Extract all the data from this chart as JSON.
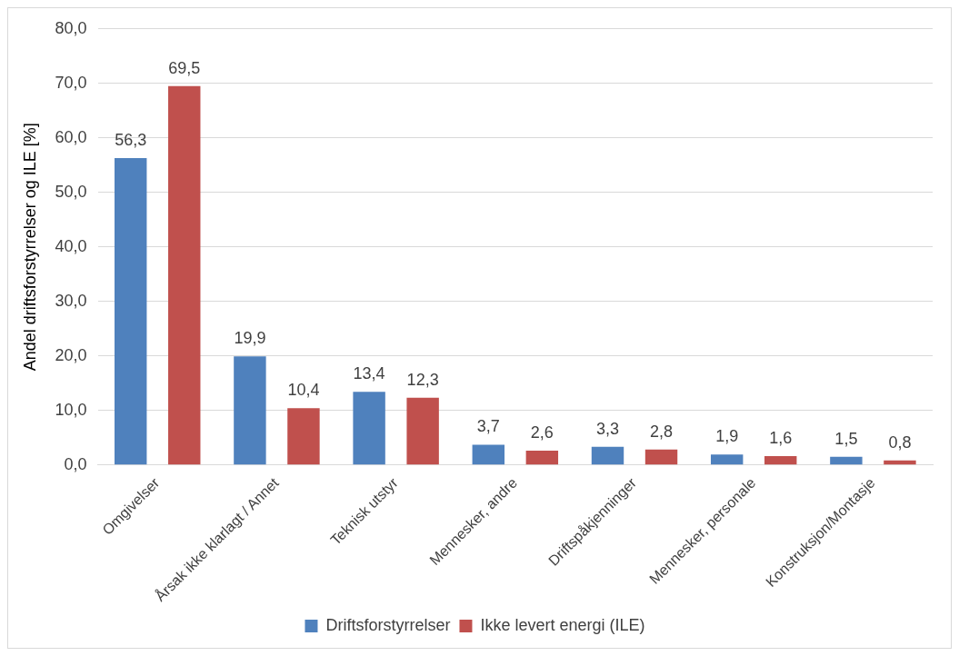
{
  "chart_data": {
    "type": "bar",
    "ylabel": "Andel driftsforstyrrelser og ILE [%]",
    "categories": [
      "Omgivelser",
      "Årsak ikke klarlagt / Annet",
      "Teknisk utstyr",
      "Mennesker, andre",
      "Driftspåkjenninger",
      "Mennesker, personale",
      "Konstruksjon/Montasje"
    ],
    "series": [
      {
        "name": "Driftsforstyrrelser",
        "color": "#4f81bd",
        "values": [
          56.3,
          19.9,
          13.4,
          3.7,
          3.3,
          1.9,
          1.5
        ],
        "value_labels": [
          "56,3",
          "19,9",
          "13,4",
          "3,7",
          "3,3",
          "1,9",
          "1,5"
        ]
      },
      {
        "name": "Ikke levert energi (ILE)",
        "color": "#c0504d",
        "values": [
          69.5,
          10.4,
          12.3,
          2.6,
          2.8,
          1.6,
          0.8
        ],
        "value_labels": [
          "69,5",
          "10,4",
          "12,3",
          "2,6",
          "2,8",
          "1,6",
          "0,8"
        ]
      }
    ],
    "ylim": [
      0,
      80
    ],
    "yticks": [
      {
        "value": 0,
        "label": "0,0"
      },
      {
        "value": 10,
        "label": "10,0"
      },
      {
        "value": 20,
        "label": "20,0"
      },
      {
        "value": 30,
        "label": "30,0"
      },
      {
        "value": 40,
        "label": "40,0"
      },
      {
        "value": 50,
        "label": "50,0"
      },
      {
        "value": 60,
        "label": "60,0"
      },
      {
        "value": 70,
        "label": "70,0"
      },
      {
        "value": 80,
        "label": "80,0"
      }
    ],
    "grid": "y",
    "legend": "bottom"
  }
}
